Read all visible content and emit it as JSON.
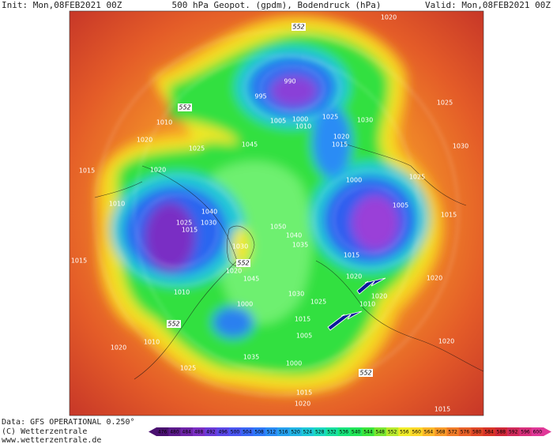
{
  "header": {
    "init": "Init: Mon,08FEB2021 00Z",
    "title": "500 hPa Geopot. (gpdm), Bodendruck (hPa)",
    "valid": "Valid: Mon,08FEB2021 00Z"
  },
  "footer": {
    "source": "Data: GFS OPERATIONAL 0.250°",
    "copyright": "(C) Wetterzentrale",
    "url": "www.wetterzentrale.de"
  },
  "map": {
    "contour_labels": [
      "552",
      "552",
      "552",
      "552",
      "552"
    ],
    "isobar_labels": [
      "990",
      "995",
      "1005",
      "1000",
      "1010",
      "1025",
      "1030",
      "1020",
      "1015",
      "1045",
      "1010",
      "1020",
      "1025",
      "1015",
      "1020",
      "1010",
      "1040",
      "1025",
      "1030",
      "1015",
      "1015",
      "1000",
      "1005",
      "1025",
      "1015",
      "1025",
      "1030",
      "1020",
      "1050",
      "1040",
      "1035",
      "1030",
      "1020",
      "1045",
      "1015",
      "1020",
      "1020",
      "1020",
      "1010",
      "1010",
      "1000",
      "1025",
      "1030",
      "1015",
      "1005",
      "1000",
      "1035",
      "1015",
      "1020",
      "1020",
      "1010",
      "1025",
      "1015",
      "1020"
    ]
  },
  "colorbar": {
    "values": [
      476,
      480,
      484,
      488,
      492,
      496,
      500,
      504,
      508,
      512,
      516,
      520,
      524,
      528,
      532,
      536,
      540,
      544,
      548,
      552,
      556,
      560,
      564,
      568,
      572,
      576,
      580,
      584,
      588,
      592,
      596,
      600
    ],
    "colors": [
      "#4a1070",
      "#5c1a8c",
      "#6e24a8",
      "#7b2fc4",
      "#6a3ad8",
      "#5a46e6",
      "#4a55f0",
      "#3a66f5",
      "#2e78f8",
      "#2a8cf5",
      "#26a0ee",
      "#22b4e4",
      "#1ec8d8",
      "#1ad8c0",
      "#18e0a0",
      "#18e47c",
      "#22e658",
      "#3ce63c",
      "#7ae630",
      "#b8ea2c",
      "#f0ec28",
      "#fcd828",
      "#fcb828",
      "#f89a28",
      "#f07c28",
      "#e86028",
      "#e04828",
      "#d83428",
      "#d02838",
      "#d02a5a",
      "#d8307c",
      "#e03898"
    ]
  }
}
